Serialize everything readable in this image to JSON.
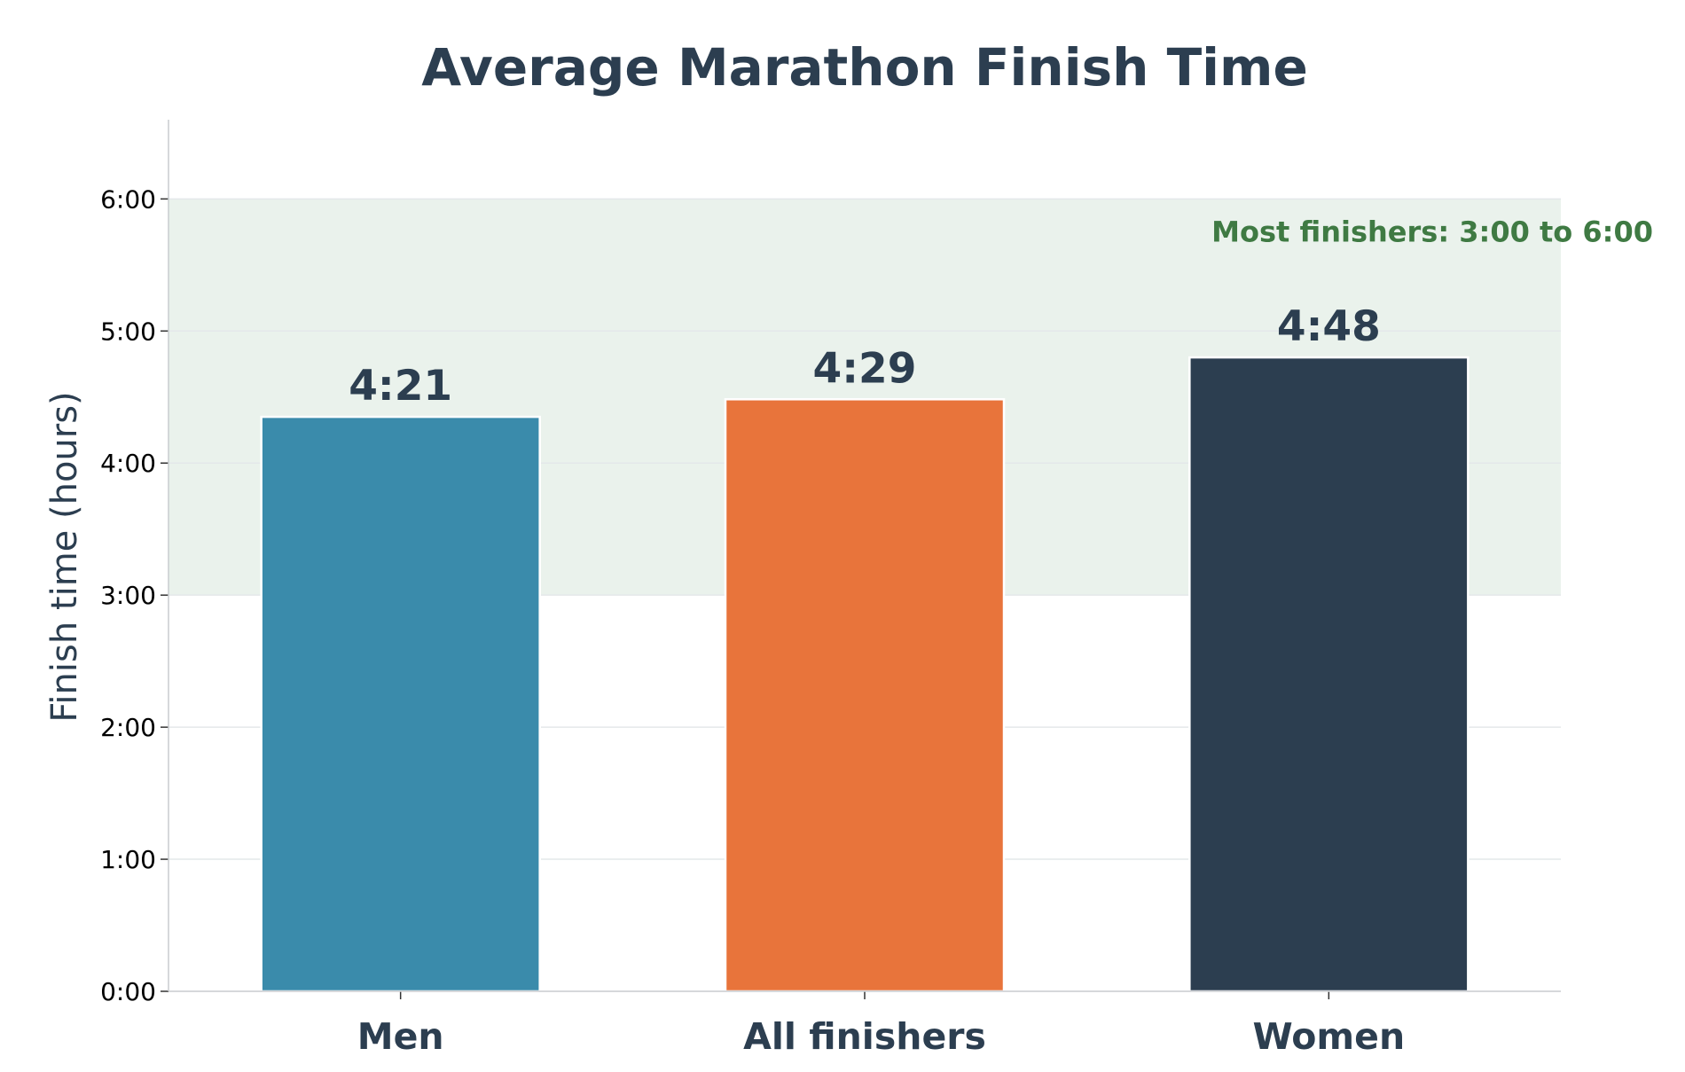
{
  "chart_data": {
    "type": "bar",
    "title": "Average Marathon Finish Time",
    "xlabel": "",
    "ylabel": "Finish time (hours)",
    "categories": [
      "Men",
      "All finishers",
      "Women"
    ],
    "values": [
      4.35,
      4.483,
      4.8
    ],
    "value_labels": [
      "4:21",
      "4:29",
      "4:48"
    ],
    "colors": [
      "#3a8bab",
      "#e8743b",
      "#2c3e50"
    ],
    "ylim": [
      0,
      6.6
    ],
    "yticks": [
      0,
      1,
      2,
      3,
      4,
      5,
      6
    ],
    "ytick_labels": [
      "0:00",
      "1:00",
      "2:00",
      "3:00",
      "4:00",
      "5:00",
      "6:00"
    ],
    "grid": "horizontal",
    "legend": "none",
    "annotations": [
      {
        "type": "band",
        "y_range": [
          3,
          6
        ],
        "label": "Most finishers: 3:00 to 6:00",
        "fill_color": "#eaf2ec",
        "text_color": "#3f7a43"
      }
    ]
  }
}
